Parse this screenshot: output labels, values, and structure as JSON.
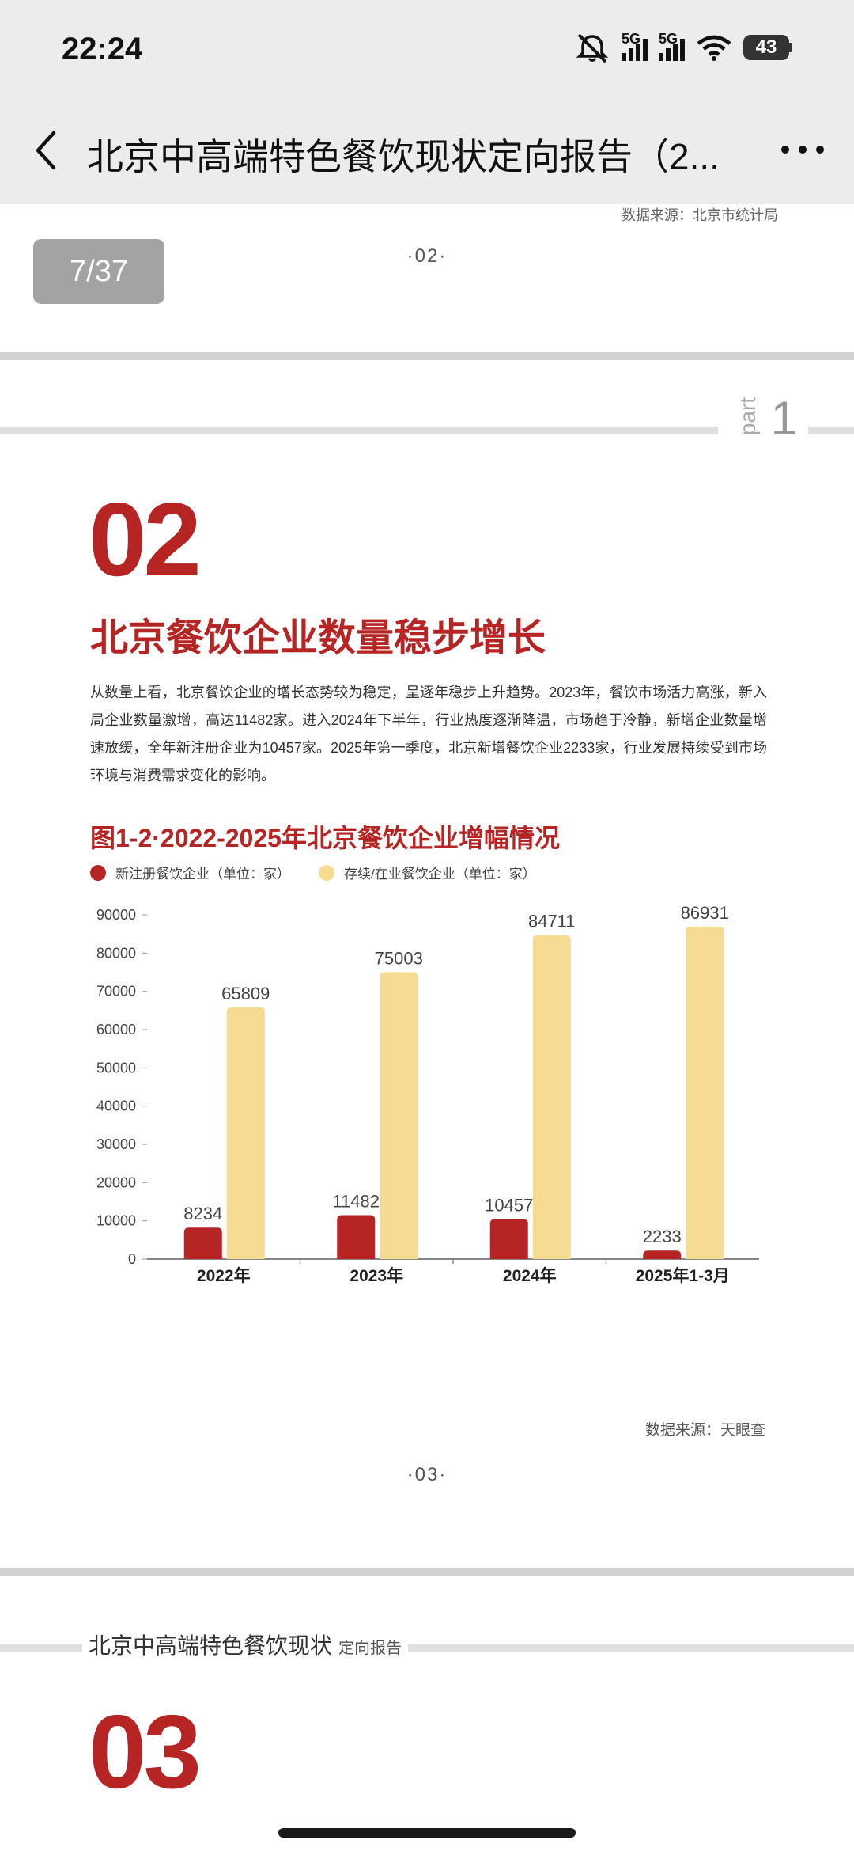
{
  "status_bar": {
    "time": "22:24",
    "sim1": "5G",
    "sim2": "5G",
    "battery": "43",
    "icons": [
      "mute-icon",
      "signal-icon",
      "signal-icon",
      "wifi-icon",
      "battery-icon"
    ]
  },
  "header": {
    "title": "北京中高端特色餐饮现状定向报告（2...",
    "icons": [
      "back-chevron-icon",
      "more-dots-icon"
    ]
  },
  "document": {
    "source_top": "数据来源：北京市统计局",
    "page_indicator": "7/37",
    "page_number_02": "·02·",
    "part_word": "part",
    "part_num": "1",
    "section_number": "02",
    "section_title": "北京餐饮企业数量稳步增长",
    "body": "从数量上看，北京餐饮企业的增长态势较为稳定，呈逐年稳步上升趋势。2023年，餐饮市场活力高涨，新入局企业数量激增，高达11482家。进入2024年下半年，行业热度逐渐降温，市场趋于冷静，新增企业数量增速放缓，全年新注册企业为10457家。2025年第一季度，北京新增餐饮企业2233家，行业发展持续受到市场环境与消费需求变化的影响。",
    "figure_title": "图1-2·2022-2025年北京餐饮企业增幅情况",
    "source_bottom": "数据来源：天眼查",
    "page_number_03": "·03·",
    "next_header_main": "北京中高端特色餐饮现状",
    "next_header_sub": "定向报告",
    "next_section_number": "03"
  },
  "chart_data": {
    "type": "bar",
    "categories": [
      "2022年",
      "2023年",
      "2024年",
      "2025年1-3月"
    ],
    "series": [
      {
        "name": "新注册餐饮企业（单位：家）",
        "values": [
          8234,
          11482,
          10457,
          2233
        ],
        "color": "#b72424"
      },
      {
        "name": "存续/在业餐饮企业（单位：家）",
        "values": [
          65809,
          75003,
          84711,
          86931
        ],
        "color": "#f6dc92"
      }
    ],
    "ylim": [
      0,
      90000
    ],
    "yticks": [
      0,
      10000,
      20000,
      30000,
      40000,
      50000,
      60000,
      70000,
      80000,
      90000
    ],
    "legend": "top-left",
    "grid": false
  }
}
